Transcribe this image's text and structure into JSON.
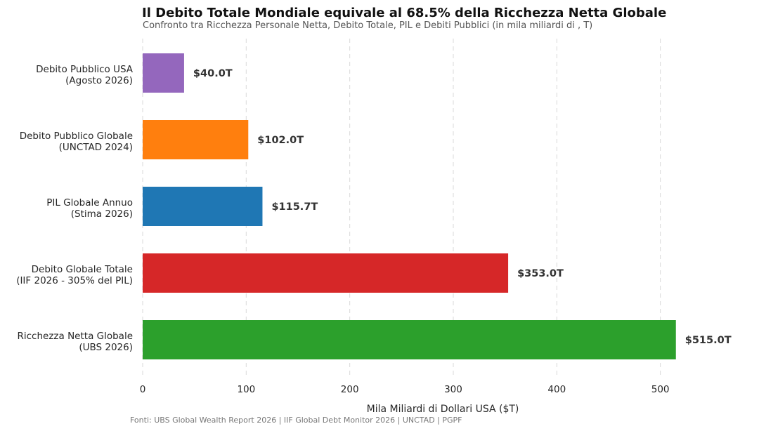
{
  "chart_data": {
    "type": "bar",
    "orientation": "horizontal",
    "title": "Il Debito Totale Mondiale equivale al 68.5% della Ricchezza Netta Globale",
    "subtitle": "Confronto tra Ricchezza Personale Netta, Debito Totale, PIL e Debiti Pubblici (in mila miliardi di , T)",
    "xlabel": "Mila Miliardi di Dollari USA ($T)",
    "ylabel": "",
    "xlim": [
      0,
      545
    ],
    "xticks": [
      0,
      100,
      200,
      300,
      400,
      500
    ],
    "grid": "vertical-dashed",
    "categories": [
      [
        "Debito Pubblico USA",
        "(Agosto 2026)"
      ],
      [
        "Debito Pubblico Globale",
        "(UNCTAD 2024)"
      ],
      [
        "PIL Globale Annuo",
        "(Stima 2026)"
      ],
      [
        "Debito Globale Totale",
        "(IIF 2026 - 305% del PIL)"
      ],
      [
        "Ricchezza Netta Globale",
        "(UBS 2026)"
      ]
    ],
    "values": [
      40.0,
      102.0,
      115.7,
      353.0,
      515.0
    ],
    "value_labels": [
      "$40.0T",
      "$102.0T",
      "$115.7T",
      "$353.0T",
      "$515.0T"
    ],
    "colors": [
      "#9467bd",
      "#ff7f0e",
      "#1f77b4",
      "#d62728",
      "#2ca02c"
    ]
  },
  "footer": {
    "source": "Fonti: UBS Global Wealth Report 2026 | IIF Global Debt Monitor 2026 | UNCTAD | PGPF"
  }
}
